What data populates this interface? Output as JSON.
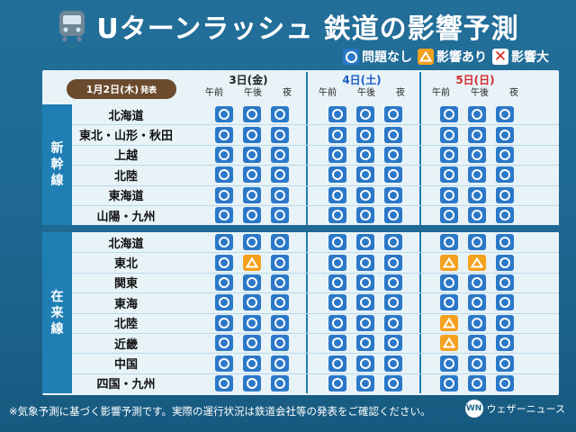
{
  "title": "Uターンラッシュ 鉄道の影響予測",
  "legend": {
    "ok": "問題なし",
    "warn": "影響あり",
    "bad": "影響大"
  },
  "issued": {
    "date": "1月2日(木)",
    "suffix": "発表"
  },
  "days": [
    {
      "label": "3日(金)",
      "style": "weekday"
    },
    {
      "label": "4日(土)",
      "style": "sat"
    },
    {
      "label": "5日(日)",
      "style": "sun"
    }
  ],
  "periods": [
    "午前",
    "午後",
    "夜"
  ],
  "groups": [
    {
      "name": "新幹線",
      "lines": [
        {
          "name": "北海道",
          "status": [
            "ok",
            "ok",
            "ok",
            "ok",
            "ok",
            "ok",
            "ok",
            "ok",
            "ok"
          ]
        },
        {
          "name": "東北・山形・秋田",
          "status": [
            "ok",
            "ok",
            "ok",
            "ok",
            "ok",
            "ok",
            "ok",
            "ok",
            "ok"
          ]
        },
        {
          "name": "上越",
          "status": [
            "ok",
            "ok",
            "ok",
            "ok",
            "ok",
            "ok",
            "ok",
            "ok",
            "ok"
          ]
        },
        {
          "name": "北陸",
          "status": [
            "ok",
            "ok",
            "ok",
            "ok",
            "ok",
            "ok",
            "ok",
            "ok",
            "ok"
          ]
        },
        {
          "name": "東海道",
          "status": [
            "ok",
            "ok",
            "ok",
            "ok",
            "ok",
            "ok",
            "ok",
            "ok",
            "ok"
          ]
        },
        {
          "name": "山陽・九州",
          "status": [
            "ok",
            "ok",
            "ok",
            "ok",
            "ok",
            "ok",
            "ok",
            "ok",
            "ok"
          ]
        }
      ]
    },
    {
      "name": "在来線",
      "lines": [
        {
          "name": "北海道",
          "status": [
            "ok",
            "ok",
            "ok",
            "ok",
            "ok",
            "ok",
            "ok",
            "ok",
            "ok"
          ]
        },
        {
          "name": "東北",
          "status": [
            "ok",
            "warn",
            "ok",
            "ok",
            "ok",
            "ok",
            "warn",
            "warn",
            "ok"
          ]
        },
        {
          "name": "関東",
          "status": [
            "ok",
            "ok",
            "ok",
            "ok",
            "ok",
            "ok",
            "ok",
            "ok",
            "ok"
          ]
        },
        {
          "name": "東海",
          "status": [
            "ok",
            "ok",
            "ok",
            "ok",
            "ok",
            "ok",
            "ok",
            "ok",
            "ok"
          ]
        },
        {
          "name": "北陸",
          "status": [
            "ok",
            "ok",
            "ok",
            "ok",
            "ok",
            "ok",
            "warn",
            "ok",
            "ok"
          ]
        },
        {
          "name": "近畿",
          "status": [
            "ok",
            "ok",
            "ok",
            "ok",
            "ok",
            "ok",
            "warn",
            "ok",
            "ok"
          ]
        },
        {
          "name": "中国",
          "status": [
            "ok",
            "ok",
            "ok",
            "ok",
            "ok",
            "ok",
            "ok",
            "ok",
            "ok"
          ]
        },
        {
          "name": "四国・九州",
          "status": [
            "ok",
            "ok",
            "ok",
            "ok",
            "ok",
            "ok",
            "ok",
            "ok",
            "ok"
          ]
        }
      ]
    }
  ],
  "footer_note": "※気象予測に基づく影響予測です。実際の運行状況は鉄道会社等の発表をご確認ください。",
  "brand": {
    "mark": "WN",
    "name": "ウェザーニュース"
  },
  "colors": {
    "background": "#1f6a94",
    "ok": "#2b78c8",
    "warn": "#f3a11e",
    "bad": "#d9251d",
    "panel": "#e8f3f8"
  }
}
